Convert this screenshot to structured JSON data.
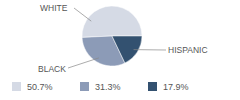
{
  "chart_data": {
    "type": "pie",
    "categories": [
      "WHITE",
      "BLACK",
      "HISPANIC"
    ],
    "values": [
      50.7,
      31.3,
      17.9
    ],
    "value_labels": [
      "50.7%",
      "31.3%",
      "17.9%"
    ],
    "colors": [
      "#d5dae5",
      "#8c9bb7",
      "#335170"
    ]
  }
}
